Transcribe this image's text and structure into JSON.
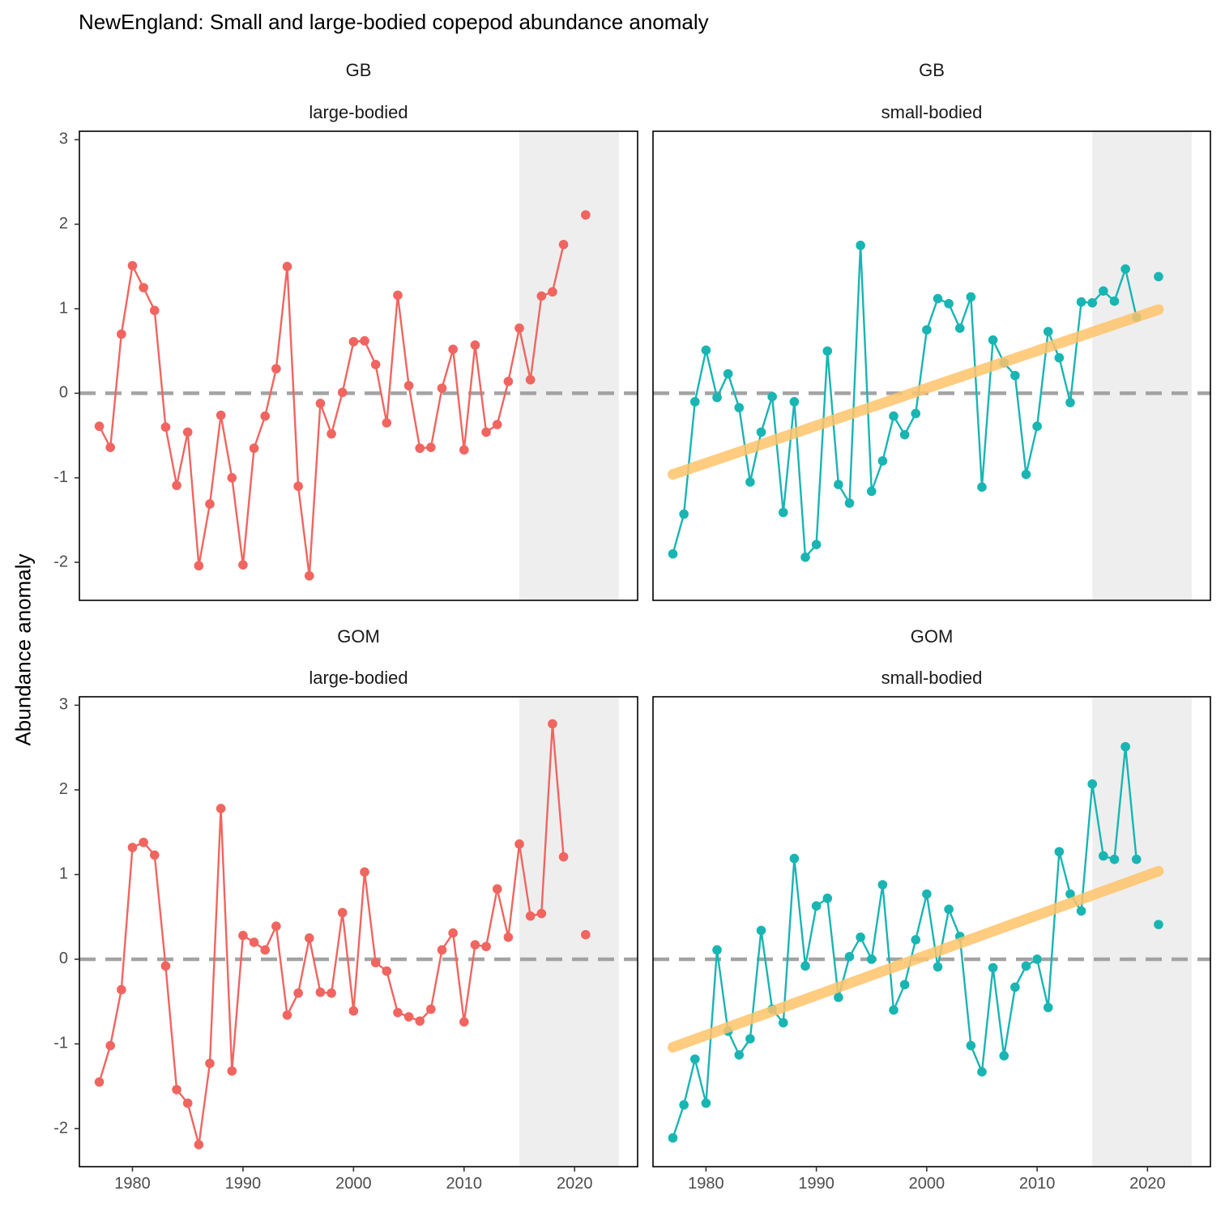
{
  "title": "NewEngland: Small and large-bodied copepod abundance anomaly",
  "ylabel": "Abundance anomaly",
  "chart_data": {
    "type": "line",
    "x_ticks": [
      1980,
      1990,
      2000,
      2010,
      2020
    ],
    "y_ticks": [
      -2,
      -1,
      0,
      1,
      2,
      3
    ],
    "x_range": [
      1975.2,
      2025.7
    ],
    "y_range": [
      -2.45,
      3.1
    ],
    "reference_line": 0,
    "shaded_x_range": [
      2015,
      2024
    ],
    "colors": {
      "large": "#F06560",
      "small": "#18B5B3",
      "trend": "#FFC46B",
      "shade": "#EEEEEE",
      "ref": "#9A9A9A"
    },
    "panels": [
      {
        "strip_top": "GB",
        "strip_bottom": "large-bodied",
        "series_color": "large",
        "years": [
          1977,
          1978,
          1979,
          1980,
          1981,
          1982,
          1983,
          1984,
          1985,
          1986,
          1987,
          1988,
          1989,
          1990,
          1991,
          1992,
          1993,
          1994,
          1995,
          1996,
          1997,
          1998,
          1999,
          2000,
          2001,
          2002,
          2003,
          2004,
          2005,
          2006,
          2007,
          2008,
          2009,
          2010,
          2011,
          2012,
          2013,
          2014,
          2015,
          2016,
          2017,
          2018,
          2019,
          2021
        ],
        "values": [
          -0.39,
          -0.64,
          0.7,
          1.51,
          1.25,
          0.98,
          -0.4,
          -1.09,
          -0.46,
          -2.04,
          -1.31,
          -0.26,
          -1.0,
          -2.03,
          -0.65,
          -0.27,
          0.29,
          1.5,
          -1.1,
          -2.16,
          -0.12,
          -0.48,
          0.01,
          0.61,
          0.62,
          0.34,
          -0.35,
          1.16,
          0.09,
          -0.65,
          -0.64,
          0.06,
          0.52,
          -0.67,
          0.57,
          -0.46,
          -0.37,
          0.14,
          0.77,
          0.16,
          1.15,
          1.2,
          1.76,
          2.11
        ],
        "trend": null
      },
      {
        "strip_top": "GB",
        "strip_bottom": "small-bodied",
        "series_color": "small",
        "years": [
          1977,
          1978,
          1979,
          1980,
          1981,
          1982,
          1983,
          1984,
          1985,
          1986,
          1987,
          1988,
          1989,
          1990,
          1991,
          1992,
          1993,
          1994,
          1995,
          1996,
          1997,
          1998,
          1999,
          2000,
          2001,
          2002,
          2003,
          2004,
          2005,
          2006,
          2007,
          2008,
          2009,
          2010,
          2011,
          2012,
          2013,
          2014,
          2015,
          2016,
          2017,
          2018,
          2019,
          2021
        ],
        "values": [
          -1.9,
          -1.43,
          -0.1,
          0.51,
          -0.05,
          0.23,
          -0.17,
          -1.05,
          -0.46,
          -0.04,
          -1.41,
          -0.1,
          -1.94,
          -1.79,
          0.5,
          -1.08,
          -1.3,
          1.75,
          -1.16,
          -0.8,
          -0.27,
          -0.49,
          -0.24,
          0.75,
          1.12,
          1.06,
          0.77,
          1.14,
          -1.11,
          0.63,
          0.36,
          0.21,
          -0.96,
          -0.39,
          0.73,
          0.42,
          -0.11,
          1.08,
          1.07,
          1.21,
          1.09,
          1.47,
          0.9,
          1.38
        ],
        "trend": {
          "x": [
            1977,
            2021
          ],
          "y": [
            -0.96,
            0.99
          ]
        }
      },
      {
        "strip_top": "GOM",
        "strip_bottom": "large-bodied",
        "series_color": "large",
        "years": [
          1977,
          1978,
          1979,
          1980,
          1981,
          1982,
          1983,
          1984,
          1985,
          1986,
          1987,
          1988,
          1989,
          1990,
          1991,
          1992,
          1993,
          1994,
          1995,
          1996,
          1997,
          1998,
          1999,
          2000,
          2001,
          2002,
          2003,
          2004,
          2005,
          2006,
          2007,
          2008,
          2009,
          2010,
          2011,
          2012,
          2013,
          2014,
          2015,
          2016,
          2017,
          2018,
          2019,
          2021
        ],
        "values": [
          -1.45,
          -1.02,
          -0.36,
          1.32,
          1.38,
          1.23,
          -0.08,
          -1.54,
          -1.7,
          -2.19,
          -1.23,
          1.78,
          -1.32,
          0.28,
          0.2,
          0.11,
          0.39,
          -0.66,
          -0.4,
          0.25,
          -0.39,
          -0.4,
          0.55,
          -0.61,
          1.03,
          -0.04,
          -0.14,
          -0.63,
          -0.68,
          -0.73,
          -0.59,
          0.11,
          0.31,
          -0.74,
          0.17,
          0.15,
          0.83,
          0.26,
          1.36,
          0.51,
          0.54,
          2.78,
          1.21,
          0.29
        ],
        "trend": null
      },
      {
        "strip_top": "GOM",
        "strip_bottom": "small-bodied",
        "series_color": "small",
        "years": [
          1977,
          1978,
          1979,
          1980,
          1981,
          1982,
          1983,
          1984,
          1985,
          1986,
          1987,
          1988,
          1989,
          1990,
          1991,
          1992,
          1993,
          1994,
          1995,
          1996,
          1997,
          1998,
          1999,
          2000,
          2001,
          2002,
          2003,
          2004,
          2005,
          2006,
          2007,
          2008,
          2009,
          2010,
          2011,
          2012,
          2013,
          2014,
          2015,
          2016,
          2017,
          2018,
          2019,
          2021
        ],
        "values": [
          -2.11,
          -1.72,
          -1.18,
          -1.7,
          0.11,
          -0.85,
          -1.13,
          -0.94,
          0.34,
          -0.59,
          -0.75,
          1.19,
          -0.08,
          0.63,
          0.72,
          -0.45,
          0.03,
          0.26,
          0.0,
          0.88,
          -0.6,
          -0.3,
          0.23,
          0.77,
          -0.09,
          0.59,
          0.27,
          -1.02,
          -1.33,
          -0.1,
          -1.14,
          -0.33,
          -0.08,
          0.0,
          -0.57,
          1.27,
          0.77,
          0.57,
          2.07,
          1.22,
          1.18,
          2.51,
          1.18,
          0.41
        ],
        "trend": {
          "x": [
            1977,
            2021
          ],
          "y": [
            -1.04,
            1.04
          ]
        }
      }
    ]
  }
}
